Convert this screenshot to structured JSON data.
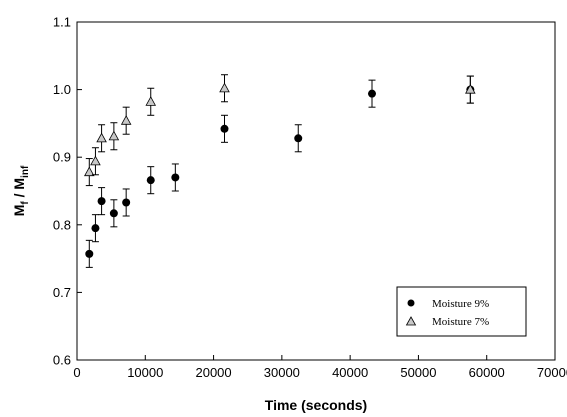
{
  "chart_data": {
    "type": "scatter",
    "xlabel": "Time (seconds)",
    "ylabel": {
      "main": "M",
      "sub1": "f",
      "sep": " / M",
      "sub2": "inf"
    },
    "xlim": [
      0,
      70000
    ],
    "ylim": [
      0.6,
      1.1
    ],
    "x_ticks": [
      "0",
      "10000",
      "20000",
      "30000",
      "40000",
      "50000",
      "60000",
      "70000"
    ],
    "y_ticks": [
      "0.6",
      "0.7",
      "0.8",
      "0.9",
      "1.0",
      "1.1"
    ],
    "error_bar": 0.02,
    "grid": false,
    "legend_position": "bottom-right",
    "series": [
      {
        "name": "Moisture 9%",
        "marker": "circle",
        "color": "#000000",
        "points": [
          [
            1800,
            0.757
          ],
          [
            2700,
            0.795
          ],
          [
            3600,
            0.835
          ],
          [
            5400,
            0.817
          ],
          [
            7200,
            0.833
          ],
          [
            10800,
            0.866
          ],
          [
            14400,
            0.87
          ],
          [
            21600,
            0.942
          ],
          [
            32400,
            0.928
          ],
          [
            43200,
            0.994
          ],
          [
            57600,
            1.0
          ]
        ]
      },
      {
        "name": "Moisture 7%",
        "marker": "triangle",
        "color": "#c8c8c8",
        "points": [
          [
            1800,
            0.878
          ],
          [
            2700,
            0.894
          ],
          [
            3600,
            0.928
          ],
          [
            5400,
            0.931
          ],
          [
            7200,
            0.954
          ],
          [
            10800,
            0.982
          ],
          [
            21600,
            1.002
          ],
          [
            57600,
            1.0
          ]
        ]
      }
    ]
  }
}
